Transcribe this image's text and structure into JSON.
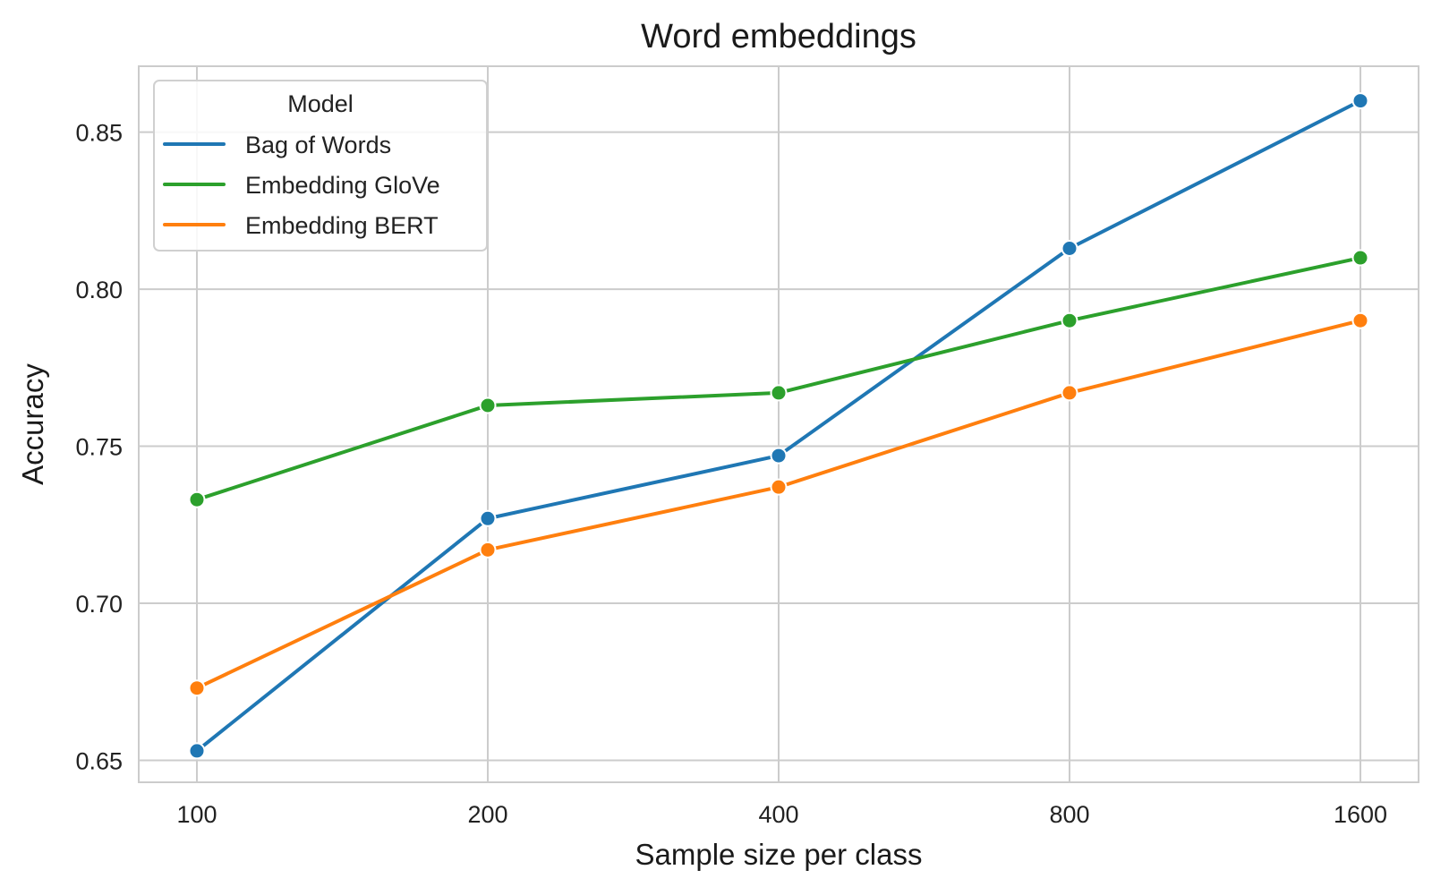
{
  "chart_data": {
    "type": "line",
    "title": "Word embeddings",
    "xlabel": "Sample size per class",
    "ylabel": "Accuracy",
    "categories": [
      "100",
      "200",
      "400",
      "800",
      "1600"
    ],
    "yticks": [
      "0.65",
      "0.70",
      "0.75",
      "0.80",
      "0.85"
    ],
    "ylim": [
      0.643,
      0.871
    ],
    "grid": true,
    "legend": {
      "title": "Model",
      "placement": "top-left"
    },
    "series": [
      {
        "name": "Bag of Words",
        "color": "#1f77b4",
        "values": [
          0.653,
          0.727,
          0.747,
          0.813,
          0.86
        ]
      },
      {
        "name": "Embedding GloVe",
        "color": "#2ca02c",
        "values": [
          0.733,
          0.763,
          0.767,
          0.79,
          0.81
        ]
      },
      {
        "name": "Embedding BERT",
        "color": "#ff7f0e",
        "values": [
          0.673,
          0.717,
          0.737,
          0.767,
          0.79
        ]
      }
    ]
  }
}
